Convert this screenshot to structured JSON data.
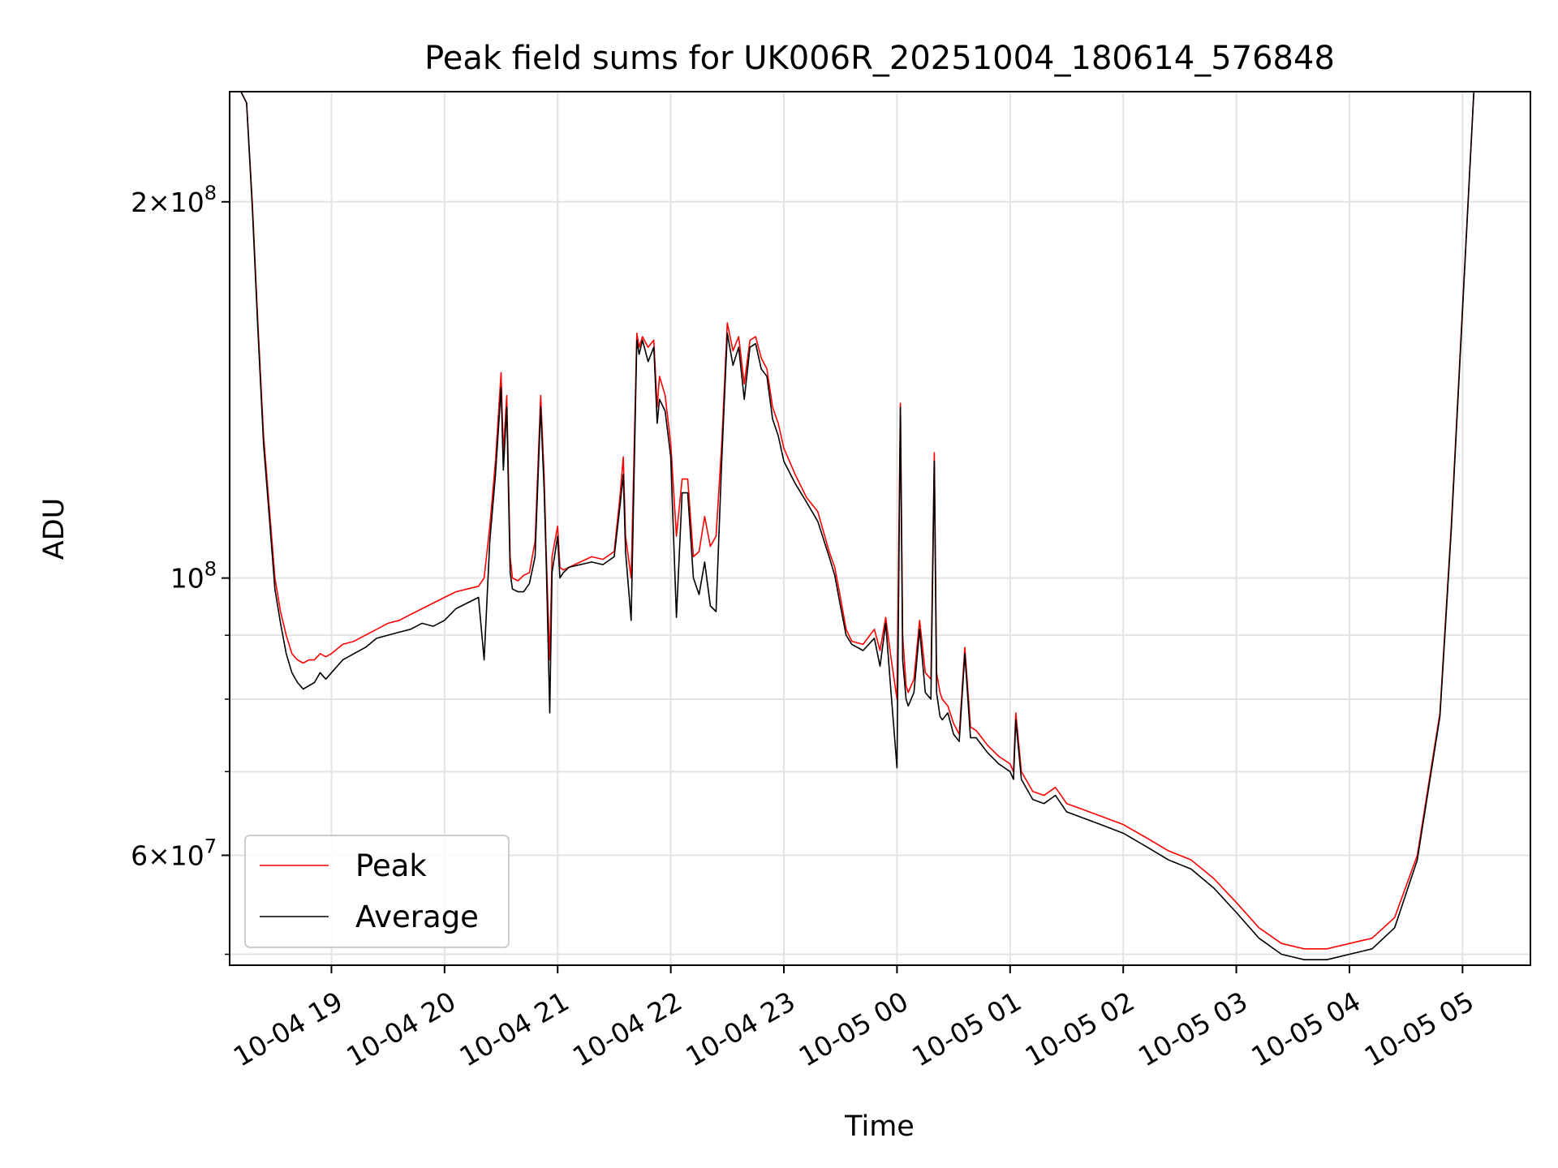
{
  "chart_data": {
    "type": "line",
    "title": "Peak field sums for UK006R_20251004_180614_576848",
    "xlabel": "Time",
    "ylabel": "ADU",
    "y_scale": "log",
    "ylim": [
      49000000,
      245000000
    ],
    "xlim_hours_since_10_04_00": [
      18.1,
      29.6
    ],
    "grid": true,
    "legend_position": "lower-left",
    "x_ticks": [
      {
        "label": "10-04 19",
        "hour": 19
      },
      {
        "label": "10-04 20",
        "hour": 20
      },
      {
        "label": "10-04 21",
        "hour": 21
      },
      {
        "label": "10-04 22",
        "hour": 22
      },
      {
        "label": "10-04 23",
        "hour": 23
      },
      {
        "label": "10-05 00",
        "hour": 24
      },
      {
        "label": "10-05 01",
        "hour": 25
      },
      {
        "label": "10-05 02",
        "hour": 26
      },
      {
        "label": "10-05 03",
        "hour": 27
      },
      {
        "label": "10-05 04",
        "hour": 28
      },
      {
        "label": "10-05 05",
        "hour": 29
      }
    ],
    "y_major_ticks": [
      {
        "base": "2",
        "exp": "8",
        "value": 200000000
      },
      {
        "base": "",
        "exp": "8",
        "value": 100000000
      },
      {
        "base": "6",
        "exp": "7",
        "value": 60000000
      }
    ],
    "y_minor_ticks": [
      50000000,
      70000000,
      80000000,
      90000000
    ],
    "times_label_unit": "hours since 10-04 00:00",
    "times": [
      18.1,
      18.2,
      18.25,
      18.3,
      18.35,
      18.4,
      18.45,
      18.5,
      18.55,
      18.6,
      18.65,
      18.7,
      18.75,
      18.8,
      18.85,
      18.9,
      18.95,
      19.0,
      19.1,
      19.2,
      19.3,
      19.4,
      19.5,
      19.6,
      19.7,
      19.8,
      19.9,
      20.0,
      20.1,
      20.2,
      20.3,
      20.35,
      20.4,
      20.45,
      20.5,
      20.52,
      20.55,
      20.58,
      20.6,
      20.65,
      20.7,
      20.75,
      20.8,
      20.85,
      20.88,
      20.9,
      20.93,
      20.95,
      21.0,
      21.02,
      21.05,
      21.1,
      21.2,
      21.3,
      21.4,
      21.5,
      21.55,
      21.58,
      21.6,
      21.65,
      21.7,
      21.72,
      21.75,
      21.8,
      21.85,
      21.88,
      21.9,
      21.95,
      22.0,
      22.05,
      22.1,
      22.15,
      22.2,
      22.25,
      22.3,
      22.35,
      22.4,
      22.45,
      22.5,
      22.55,
      22.6,
      22.65,
      22.7,
      22.75,
      22.8,
      22.85,
      22.9,
      22.95,
      23.0,
      23.1,
      23.2,
      23.3,
      23.4,
      23.45,
      23.5,
      23.55,
      23.6,
      23.7,
      23.8,
      23.85,
      23.9,
      23.95,
      24.0,
      24.03,
      24.05,
      24.08,
      24.1,
      24.15,
      24.2,
      24.25,
      24.3,
      24.33,
      24.35,
      24.38,
      24.4,
      24.45,
      24.5,
      24.55,
      24.6,
      24.65,
      24.7,
      24.75,
      24.8,
      24.9,
      25.0,
      25.03,
      25.05,
      25.1,
      25.2,
      25.3,
      25.4,
      25.45,
      25.5,
      25.6,
      25.8,
      26.0,
      26.2,
      26.4,
      26.6,
      26.8,
      27.0,
      27.2,
      27.4,
      27.6,
      27.8,
      28.0,
      28.2,
      28.4,
      28.6,
      28.8,
      28.9,
      29.0,
      29.1,
      29.2,
      29.3,
      29.4,
      29.5,
      29.6
    ],
    "series": [
      {
        "name": "Peak",
        "color": "#ff0000",
        "values": [
          245000000,
          245000000,
          240000000,
          200000000,
          160000000,
          130000000,
          114000000,
          100000000,
          94000000,
          90000000,
          87000000,
          86000000,
          85500000,
          86000000,
          86000000,
          87000000,
          86500000,
          87000000,
          88500000,
          89000000,
          90000000,
          91000000,
          92000000,
          92500000,
          93500000,
          94500000,
          95500000,
          96500000,
          97500000,
          98000000,
          98500000,
          100000000,
          110000000,
          124000000,
          146000000,
          126000000,
          140000000,
          104000000,
          100000000,
          99500000,
          100500000,
          101000000,
          107000000,
          140000000,
          121000000,
          104000000,
          86000000,
          104000000,
          110000000,
          102000000,
          101500000,
          102000000,
          103000000,
          104000000,
          103500000,
          105000000,
          116000000,
          125000000,
          108000000,
          100000000,
          157000000,
          153000000,
          156000000,
          153000000,
          155000000,
          137000000,
          145000000,
          140000000,
          128000000,
          108000000,
          120000000,
          120000000,
          104000000,
          105000000,
          112000000,
          106000000,
          108000000,
          128000000,
          160000000,
          152000000,
          156000000,
          143000000,
          155000000,
          156000000,
          150000000,
          147000000,
          137000000,
          133000000,
          127000000,
          121000000,
          116000000,
          113000000,
          105000000,
          102000000,
          96500000,
          91000000,
          89000000,
          88500000,
          91000000,
          87500000,
          93000000,
          86000000,
          80000000,
          138000000,
          90000000,
          82000000,
          81000000,
          83000000,
          92500000,
          84000000,
          83000000,
          126000000,
          84000000,
          81000000,
          80000000,
          79000000,
          76500000,
          75000000,
          88000000,
          76000000,
          75500000,
          74500000,
          73500000,
          72000000,
          71000000,
          70000000,
          78000000,
          70000000,
          67500000,
          67000000,
          68000000,
          67000000,
          66000000,
          65500000,
          64500000,
          63500000,
          62000000,
          60500000,
          59500000,
          57500000,
          55000000,
          52500000,
          51000000,
          50500000,
          50500000,
          51000000,
          51500000,
          53500000,
          60000000,
          78000000,
          110000000,
          165000000,
          245000000,
          245000000
        ]
      },
      {
        "name": "Average",
        "color": "#000000",
        "values": [
          245000000,
          245000000,
          240000000,
          198000000,
          158000000,
          128000000,
          112000000,
          98000000,
          92000000,
          87000000,
          84000000,
          82500000,
          81500000,
          82000000,
          82500000,
          84000000,
          83000000,
          84000000,
          86000000,
          87000000,
          88000000,
          89500000,
          90000000,
          90500000,
          91000000,
          92000000,
          91500000,
          92500000,
          94500000,
          95500000,
          96500000,
          86000000,
          107000000,
          121000000,
          142000000,
          122000000,
          137000000,
          101000000,
          98000000,
          97500000,
          97500000,
          99000000,
          104000000,
          137000000,
          118000000,
          102000000,
          78000000,
          101000000,
          108000000,
          100000000,
          101000000,
          102000000,
          102500000,
          103000000,
          102500000,
          104000000,
          114000000,
          121000000,
          105000000,
          92500000,
          155000000,
          151000000,
          155000000,
          149000000,
          153000000,
          133000000,
          139000000,
          136000000,
          125000000,
          93000000,
          117000000,
          117000000,
          100000000,
          97000000,
          103000000,
          95000000,
          94000000,
          124000000,
          157000000,
          148000000,
          153000000,
          139000000,
          153000000,
          154000000,
          147000000,
          145000000,
          134000000,
          130000000,
          124000000,
          119000000,
          115000000,
          111000000,
          104000000,
          100500000,
          95000000,
          90000000,
          88500000,
          87500000,
          89500000,
          85000000,
          92000000,
          80500000,
          70500000,
          137000000,
          86000000,
          80000000,
          79000000,
          81000000,
          91000000,
          81000000,
          80000000,
          124000000,
          81000000,
          77500000,
          77000000,
          78000000,
          75000000,
          74000000,
          87000000,
          74500000,
          74500000,
          73500000,
          72500000,
          71000000,
          70000000,
          69000000,
          77000000,
          69000000,
          66500000,
          66000000,
          67000000,
          66000000,
          65000000,
          64500000,
          63500000,
          62500000,
          61000000,
          59500000,
          58500000,
          56500000,
          54000000,
          51500000,
          50000000,
          49500000,
          49500000,
          50000000,
          50500000,
          52500000,
          59500000,
          77500000,
          109000000,
          164000000,
          245000000,
          245000000
        ]
      }
    ]
  }
}
